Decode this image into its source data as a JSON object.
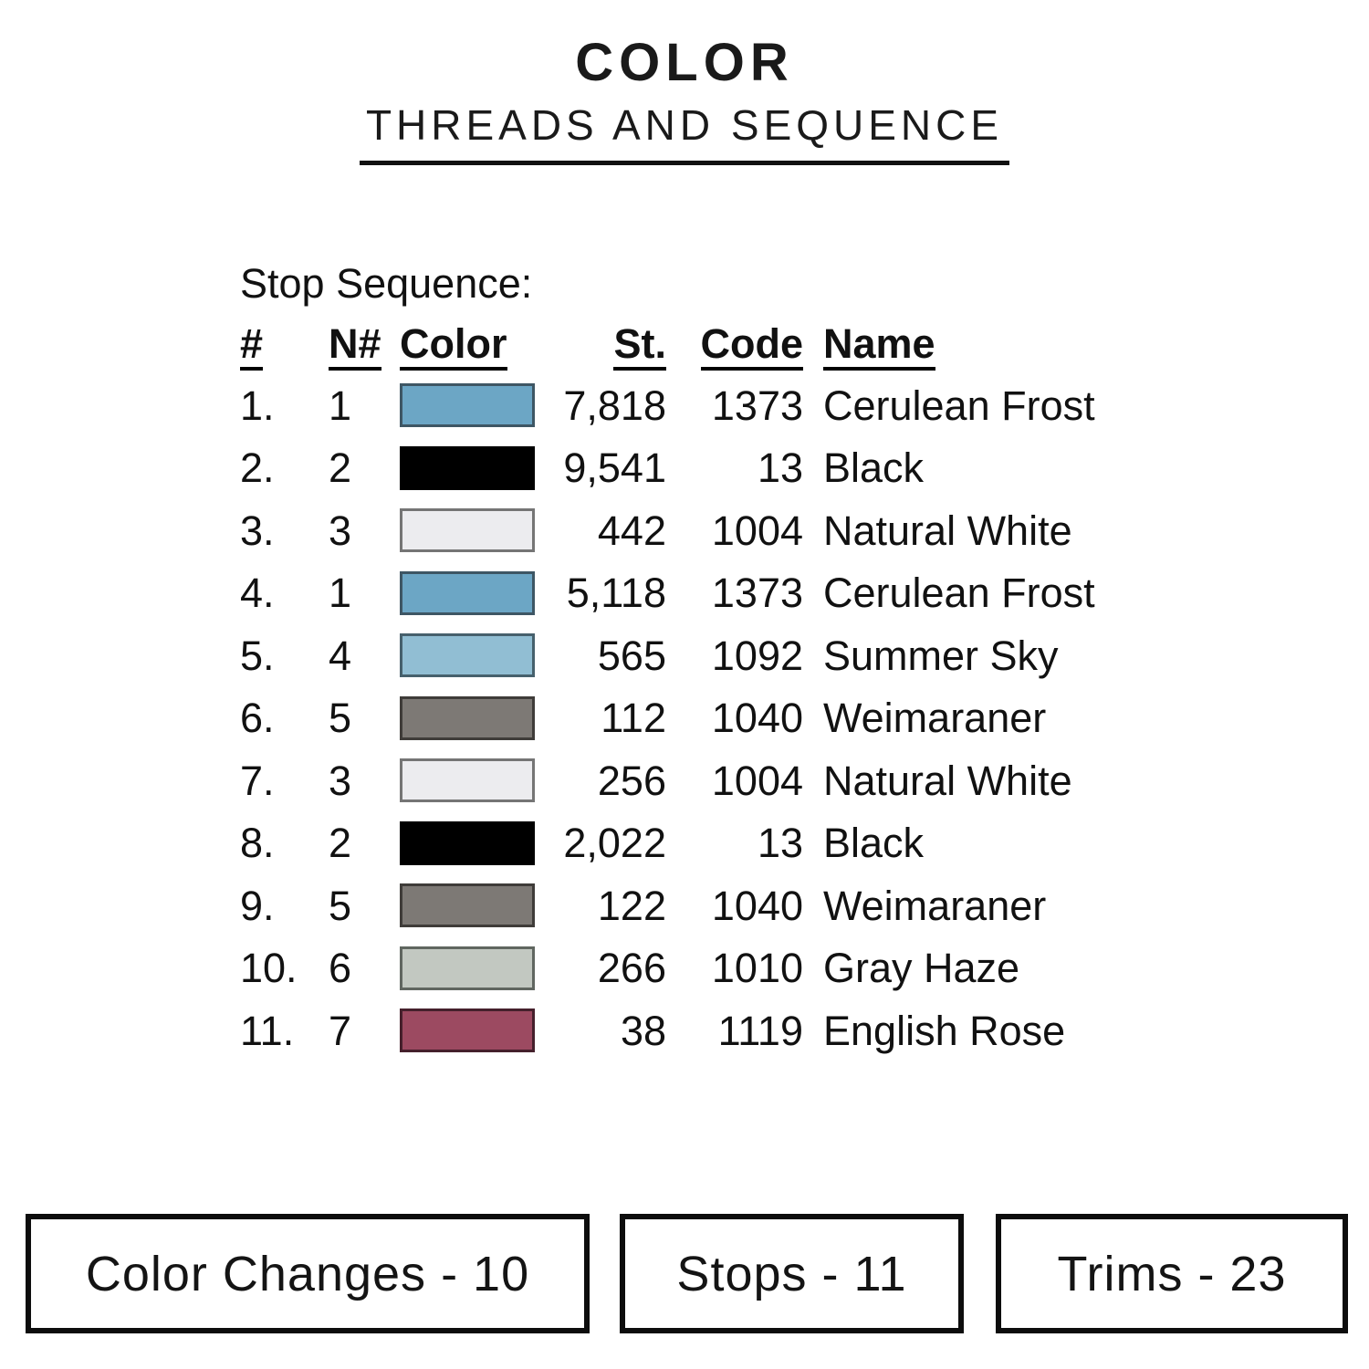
{
  "page": {
    "title": "COLOR",
    "subtitle": "THREADS AND SEQUENCE"
  },
  "table": {
    "section_label": "Stop Sequence:",
    "headers": {
      "num": "#",
      "needle": "N#",
      "color": "Color",
      "stitches": "St.",
      "code": "Code",
      "name": "Name"
    },
    "rows": [
      {
        "num": "1.",
        "needle": "1",
        "swatch": "#6CA6C5",
        "swatch_border": "#3E5664",
        "stitches": "7,818",
        "code": "1373",
        "name": "Cerulean Frost"
      },
      {
        "num": "2.",
        "needle": "2",
        "swatch": "#000000",
        "swatch_border": "#000000",
        "stitches": "9,541",
        "code": "13",
        "name": "Black"
      },
      {
        "num": "3.",
        "needle": "3",
        "swatch": "#ECECEF",
        "swatch_border": "#757575",
        "stitches": "442",
        "code": "1004",
        "name": "Natural White"
      },
      {
        "num": "4.",
        "needle": "1",
        "swatch": "#6CA6C5",
        "swatch_border": "#3E5664",
        "stitches": "5,118",
        "code": "1373",
        "name": "Cerulean Frost"
      },
      {
        "num": "5.",
        "needle": "4",
        "swatch": "#91BED3",
        "swatch_border": "#46606C",
        "stitches": "565",
        "code": "1092",
        "name": "Summer Sky"
      },
      {
        "num": "6.",
        "needle": "5",
        "swatch": "#7D7975",
        "swatch_border": "#3F3C39",
        "stitches": "112",
        "code": "1040",
        "name": "Weimaraner"
      },
      {
        "num": "7.",
        "needle": "3",
        "swatch": "#ECECEF",
        "swatch_border": "#757575",
        "stitches": "256",
        "code": "1004",
        "name": "Natural White"
      },
      {
        "num": "8.",
        "needle": "2",
        "swatch": "#000000",
        "swatch_border": "#000000",
        "stitches": "2,022",
        "code": "13",
        "name": "Black"
      },
      {
        "num": "9.",
        "needle": "5",
        "swatch": "#7D7975",
        "swatch_border": "#3F3C39",
        "stitches": "122",
        "code": "1040",
        "name": "Weimaraner"
      },
      {
        "num": "10.",
        "needle": "6",
        "swatch": "#C2C8C1",
        "swatch_border": "#606660",
        "stitches": "266",
        "code": "1010",
        "name": "Gray Haze"
      },
      {
        "num": "11.",
        "needle": "7",
        "swatch": "#9C4A61",
        "swatch_border": "#45202C",
        "stitches": "38",
        "code": "1119",
        "name": "English Rose"
      }
    ]
  },
  "footer": {
    "boxes": [
      {
        "label": "Color Changes - 10"
      },
      {
        "label": "Stops - 11"
      },
      {
        "label": "Trims - 23"
      }
    ]
  }
}
